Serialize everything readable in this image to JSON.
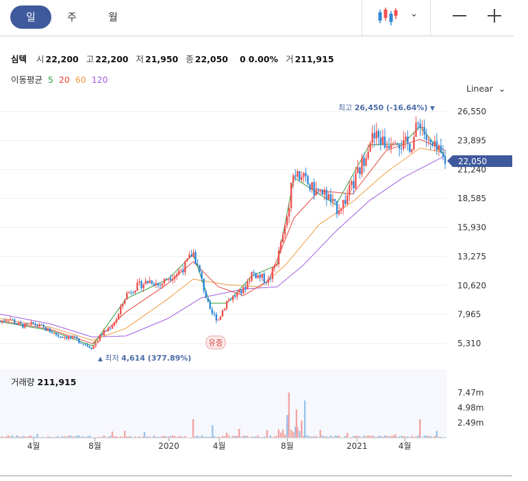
{
  "tabs": [
    "일",
    "주",
    "월"
  ],
  "active_tab": 0,
  "icons": {
    "chart_type": "candlestick-icon",
    "dropdown": "chevron-down-icon",
    "zoom_out": "minus-icon",
    "zoom_in": "plus-icon"
  },
  "quote": {
    "name": "심텍",
    "open_label": "시",
    "open": "22,200",
    "high_label": "고",
    "high": "22,200",
    "low_label": "저",
    "low": "21,950",
    "close_label": "종",
    "close": "22,050",
    "change": "0",
    "change_pct": "0.00%",
    "volume_label": "거",
    "volume": "211,915"
  },
  "ma_legend": {
    "label": "이동평균",
    "periods": [
      "5",
      "20",
      "60",
      "120"
    ],
    "colors": [
      "#2e9e3a",
      "#e8443a",
      "#f09a3e",
      "#a05be0"
    ]
  },
  "scale_button": "Linear",
  "volume_header": {
    "label": "거래량",
    "value": "211,915"
  },
  "colors": {
    "up": "#f0504f",
    "down": "#2f86d6",
    "accent": "#3f5a9c",
    "annotation": "#4a6aa6"
  },
  "chart_data": {
    "type": "candlestick",
    "yticks": [
      "26,550",
      "23,895",
      "21,240",
      "18,585",
      "15,930",
      "13,275",
      "10,620",
      "7,965",
      "5,310"
    ],
    "ytick_values": [
      26550,
      23895,
      21240,
      18585,
      15930,
      13275,
      10620,
      7965,
      5310
    ],
    "xticks": [
      "4월",
      "8월",
      "2020",
      "4월",
      "8월",
      "2021",
      "4월"
    ],
    "current_price": "22,050",
    "high_annotation": {
      "label": "최고",
      "value": "26,450 (-16.64%)",
      "arrow": "▼"
    },
    "low_annotation": {
      "label": "최저",
      "value": "4,614 (377.89%)",
      "arrow": "▲"
    },
    "event_marker": "유증",
    "price_path": [
      [
        0,
        7300
      ],
      [
        1,
        7700
      ],
      [
        2,
        7100
      ],
      [
        3,
        6900
      ],
      [
        4,
        7100
      ],
      [
        5,
        6800
      ],
      [
        6,
        6400
      ],
      [
        7,
        6000
      ],
      [
        8,
        5900
      ],
      [
        9,
        5700
      ],
      [
        10,
        5300
      ],
      [
        11,
        4900
      ],
      [
        12,
        6100
      ],
      [
        13,
        6700
      ],
      [
        14,
        7700
      ],
      [
        15,
        9800
      ],
      [
        16,
        10400
      ],
      [
        17,
        10800
      ],
      [
        18,
        11100
      ],
      [
        19,
        10600
      ],
      [
        20,
        11400
      ],
      [
        21,
        11700
      ],
      [
        22,
        12400
      ],
      [
        23,
        13700
      ],
      [
        24,
        11100
      ],
      [
        25,
        8200
      ],
      [
        26,
        7500
      ],
      [
        27,
        9200
      ],
      [
        28,
        9700
      ],
      [
        29,
        10200
      ],
      [
        30,
        11800
      ],
      [
        31,
        11400
      ],
      [
        32,
        11000
      ],
      [
        33,
        13000
      ],
      [
        34,
        16000
      ],
      [
        35,
        21400
      ],
      [
        36,
        20500
      ],
      [
        37,
        19500
      ],
      [
        38,
        19200
      ],
      [
        39,
        18800
      ],
      [
        40,
        17600
      ],
      [
        41,
        18300
      ],
      [
        42,
        19800
      ],
      [
        43,
        21500
      ],
      [
        44,
        24000
      ],
      [
        45,
        24200
      ],
      [
        46,
        23500
      ],
      [
        47,
        24500
      ],
      [
        48,
        23400
      ],
      [
        49,
        23600
      ],
      [
        50,
        25800
      ],
      [
        51,
        23500
      ],
      [
        52,
        22900
      ],
      [
        53,
        22050
      ]
    ],
    "ma5_path": [
      [
        0,
        7300
      ],
      [
        6,
        6500
      ],
      [
        11,
        5100
      ],
      [
        15,
        9400
      ],
      [
        20,
        11200
      ],
      [
        23,
        13500
      ],
      [
        25,
        9000
      ],
      [
        27,
        9000
      ],
      [
        30,
        11500
      ],
      [
        33,
        12500
      ],
      [
        35,
        20500
      ],
      [
        40,
        18000
      ],
      [
        44,
        23500
      ],
      [
        48,
        23600
      ],
      [
        50,
        25200
      ],
      [
        53,
        22400
      ]
    ],
    "ma20_path": [
      [
        0,
        7400
      ],
      [
        6,
        6600
      ],
      [
        11,
        5300
      ],
      [
        15,
        8200
      ],
      [
        20,
        10800
      ],
      [
        23,
        12800
      ],
      [
        26,
        10500
      ],
      [
        29,
        9700
      ],
      [
        32,
        11100
      ],
      [
        35,
        16800
      ],
      [
        38,
        19300
      ],
      [
        42,
        19000
      ],
      [
        46,
        23000
      ],
      [
        50,
        24000
      ],
      [
        53,
        23000
      ]
    ],
    "ma60_path": [
      [
        0,
        7600
      ],
      [
        6,
        6800
      ],
      [
        11,
        5600
      ],
      [
        15,
        6700
      ],
      [
        20,
        9400
      ],
      [
        23,
        11200
      ],
      [
        27,
        10700
      ],
      [
        31,
        10500
      ],
      [
        34,
        12500
      ],
      [
        38,
        16200
      ],
      [
        42,
        18300
      ],
      [
        46,
        21000
      ],
      [
        50,
        23200
      ],
      [
        53,
        22800
      ]
    ],
    "ma120_path": [
      [
        0,
        8000
      ],
      [
        6,
        7100
      ],
      [
        11,
        5900
      ],
      [
        15,
        6000
      ],
      [
        20,
        7600
      ],
      [
        24,
        9500
      ],
      [
        29,
        10300
      ],
      [
        33,
        10500
      ],
      [
        36,
        12400
      ],
      [
        40,
        15600
      ],
      [
        44,
        18400
      ],
      [
        48,
        20500
      ],
      [
        53,
        22500
      ]
    ],
    "volume_yticks": [
      "7.47m",
      "4.98m",
      "2.49m"
    ],
    "volume_ytick_values": [
      7.47,
      4.98,
      2.49
    ]
  }
}
